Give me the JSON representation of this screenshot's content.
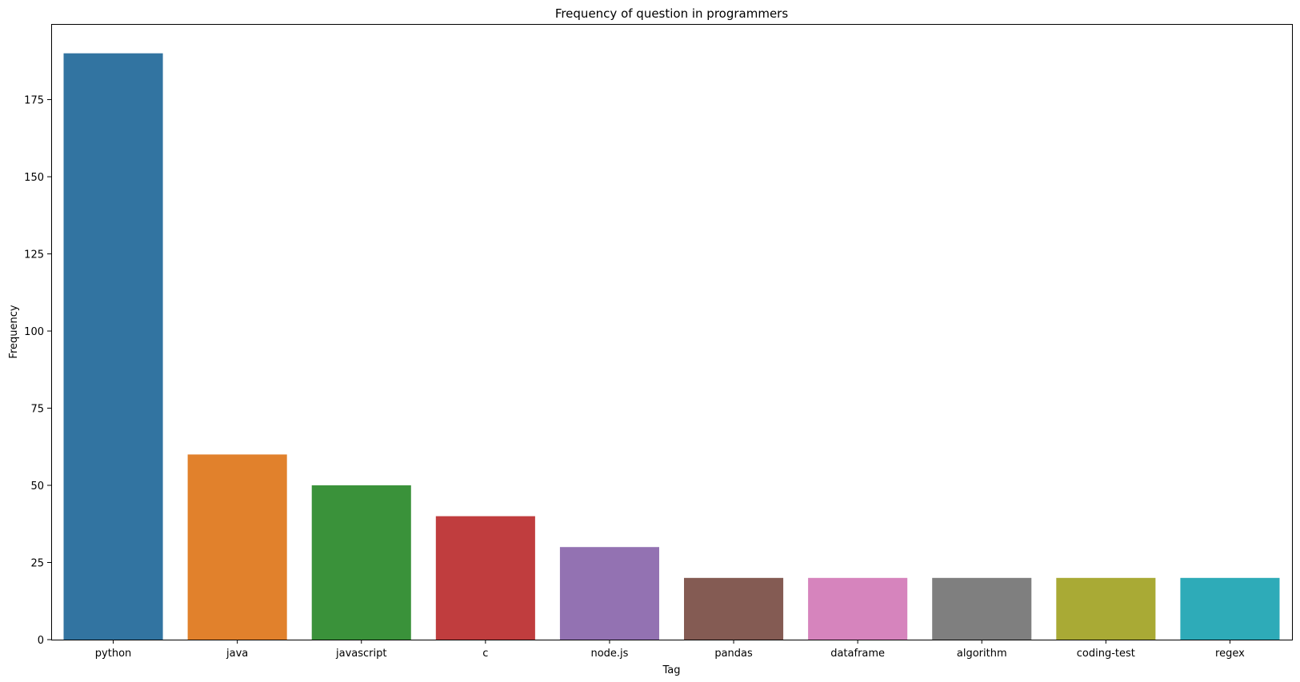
{
  "chart_data": {
    "type": "bar",
    "title": "Frequency of question in programmers",
    "xlabel": "Tag",
    "ylabel": "Frequency",
    "categories": [
      "python",
      "java",
      "javascript",
      "c",
      "node.js",
      "pandas",
      "dataframe",
      "algorithm",
      "coding-test",
      "regex"
    ],
    "values": [
      190,
      60,
      50,
      40,
      30,
      20,
      20,
      20,
      20,
      20
    ],
    "colors": [
      "#3274a1",
      "#e1812c",
      "#3a923a",
      "#c03d3e",
      "#9372b2",
      "#845b53",
      "#d684bd",
      "#7f7f7f",
      "#a9aa35",
      "#2eabb8"
    ],
    "ylim": [
      0,
      199.5
    ],
    "yticks": [
      0,
      25,
      50,
      75,
      100,
      125,
      150,
      175
    ],
    "grid": false,
    "legend": "none"
  }
}
